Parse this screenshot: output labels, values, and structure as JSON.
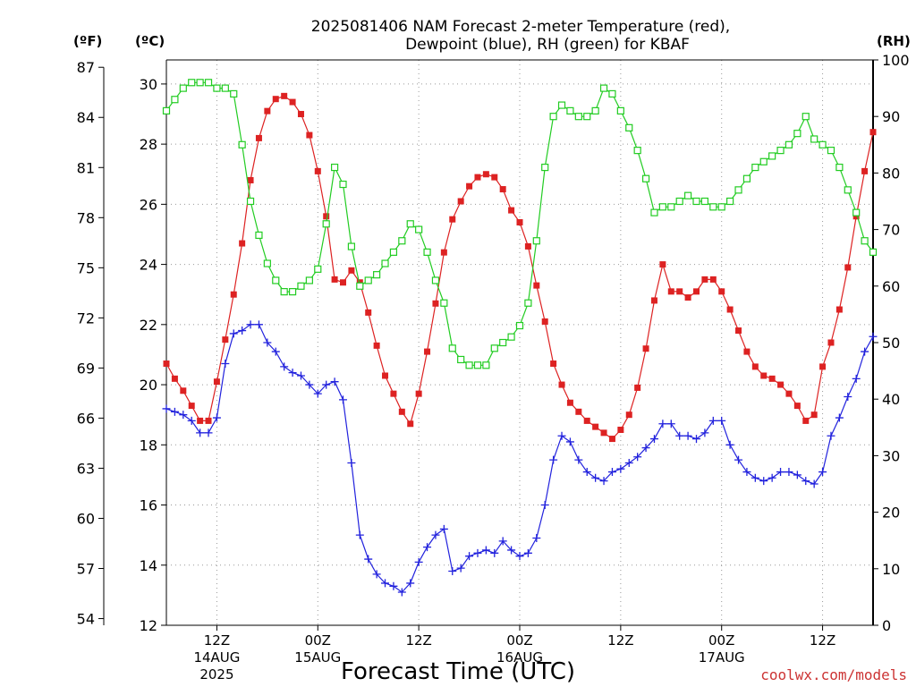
{
  "chart_data": {
    "type": "line",
    "title_line1": "2025081406 NAM Forecast 2-meter Temperature (red),",
    "title_line2": "Dewpoint (blue), RH (green) for KBAF",
    "xlabel": "Forecast Time (UTC)",
    "credit": "coolwx.com/models",
    "units": {
      "fahrenheit": "(ºF)",
      "celsius": "(ºC)",
      "rh": "(RH)"
    },
    "x_range_hours": [
      6,
      90
    ],
    "ylim_celsius": [
      12,
      30.8
    ],
    "ylim_rh": [
      0,
      100
    ],
    "celsius_ticks": [
      "12",
      "14",
      "16",
      "18",
      "20",
      "22",
      "24",
      "26",
      "28",
      "30"
    ],
    "fahrenheit_ticks": [
      "54",
      "57",
      "60",
      "63",
      "66",
      "69",
      "72",
      "75",
      "78",
      "81",
      "84",
      "87"
    ],
    "rh_ticks": [
      "0",
      "10",
      "20",
      "30",
      "40",
      "50",
      "60",
      "70",
      "80",
      "90",
      "100"
    ],
    "x_ticks": [
      {
        "hour": 12,
        "line1": "12Z",
        "line2": "14AUG",
        "line3": "2025"
      },
      {
        "hour": 24,
        "line1": "00Z",
        "line2": "15AUG",
        "line3": ""
      },
      {
        "hour": 36,
        "line1": "12Z",
        "line2": "",
        "line3": ""
      },
      {
        "hour": 48,
        "line1": "00Z",
        "line2": "16AUG",
        "line3": ""
      },
      {
        "hour": 60,
        "line1": "12Z",
        "line2": "",
        "line3": ""
      },
      {
        "hour": 72,
        "line1": "00Z",
        "line2": "17AUG",
        "line3": ""
      },
      {
        "hour": 84,
        "line1": "12Z",
        "line2": "",
        "line3": ""
      }
    ],
    "hours": [
      6,
      7,
      8,
      9,
      10,
      11,
      12,
      13,
      14,
      15,
      16,
      17,
      18,
      19,
      20,
      21,
      22,
      23,
      24,
      25,
      26,
      27,
      28,
      29,
      30,
      31,
      32,
      33,
      34,
      35,
      36,
      37,
      38,
      39,
      40,
      41,
      42,
      43,
      44,
      45,
      46,
      47,
      48,
      49,
      50,
      51,
      52,
      53,
      54,
      55,
      56,
      57,
      58,
      59,
      60,
      61,
      62,
      63,
      64,
      65,
      66,
      67,
      68,
      69,
      70,
      71,
      72,
      73,
      74,
      75,
      76,
      77,
      78,
      79,
      80,
      81,
      82,
      83,
      84,
      85,
      86,
      87,
      88,
      89,
      90
    ],
    "series": [
      {
        "name": "Temperature (red)",
        "color": "#dd2222",
        "marker": "filled-square",
        "axis": "celsius",
        "values": [
          20.7,
          20.2,
          19.8,
          19.3,
          18.8,
          18.8,
          20.1,
          21.5,
          23.0,
          24.7,
          26.8,
          28.2,
          29.1,
          29.5,
          29.6,
          29.4,
          29.0,
          28.3,
          27.1,
          25.6,
          23.5,
          23.4,
          23.8,
          23.4,
          22.4,
          21.3,
          20.3,
          19.7,
          19.1,
          18.7,
          19.7,
          21.1,
          22.7,
          24.4,
          25.5,
          26.1,
          26.6,
          26.9,
          27.0,
          26.9,
          26.5,
          25.8,
          25.4,
          24.6,
          23.3,
          22.1,
          20.7,
          20.0,
          19.4,
          19.1,
          18.8,
          18.6,
          18.4,
          18.2,
          18.5,
          19.0,
          19.9,
          21.2,
          22.8,
          24.0,
          23.1,
          23.1,
          22.9,
          23.1,
          23.5,
          23.5,
          23.1,
          22.5,
          21.8,
          21.1,
          20.6,
          20.3,
          20.2,
          20.0,
          19.7,
          19.3,
          18.8,
          19.0,
          20.6,
          21.4,
          22.5,
          23.9,
          25.6,
          27.1,
          28.4
        ]
      },
      {
        "name": "Dewpoint (blue)",
        "color": "#2222dd",
        "marker": "plus",
        "axis": "celsius",
        "values": [
          19.2,
          19.1,
          19.0,
          18.8,
          18.4,
          18.4,
          18.9,
          20.7,
          21.7,
          21.8,
          22.0,
          22.0,
          21.4,
          21.1,
          20.6,
          20.4,
          20.3,
          20.0,
          19.7,
          20.0,
          20.1,
          19.5,
          17.4,
          15.0,
          14.2,
          13.7,
          13.4,
          13.3,
          13.1,
          13.4,
          14.1,
          14.6,
          15.0,
          15.2,
          13.8,
          13.9,
          14.3,
          14.4,
          14.5,
          14.4,
          14.8,
          14.5,
          14.3,
          14.4,
          14.9,
          16.0,
          17.5,
          18.3,
          18.1,
          17.5,
          17.1,
          16.9,
          16.8,
          17.1,
          17.2,
          17.4,
          17.6,
          17.9,
          18.2,
          18.7,
          18.7,
          18.3,
          18.3,
          18.2,
          18.4,
          18.8,
          18.8,
          18.0,
          17.5,
          17.1,
          16.9,
          16.8,
          16.9,
          17.1,
          17.1,
          17.0,
          16.8,
          16.7,
          17.1,
          18.3,
          18.9,
          19.6,
          20.2,
          21.1,
          21.6
        ]
      },
      {
        "name": "RH (green)",
        "color": "#22cc22",
        "marker": "open-square",
        "axis": "rh",
        "values": [
          91,
          93,
          95,
          96,
          96,
          96,
          95,
          95,
          94,
          85,
          75,
          69,
          64,
          61,
          59,
          59,
          60,
          61,
          63,
          71,
          81,
          78,
          67,
          60,
          61,
          62,
          64,
          66,
          68,
          71,
          70,
          66,
          61,
          57,
          49,
          47,
          46,
          46,
          46,
          49,
          50,
          51,
          53,
          57,
          68,
          81,
          90,
          92,
          91,
          90,
          90,
          91,
          95,
          94,
          91,
          88,
          84,
          79,
          73,
          74,
          74,
          75,
          76,
          75,
          75,
          74,
          74,
          75,
          77,
          79,
          81,
          82,
          83,
          84,
          85,
          87,
          90,
          86,
          85,
          84,
          81,
          77,
          73,
          68,
          66
        ]
      }
    ]
  }
}
